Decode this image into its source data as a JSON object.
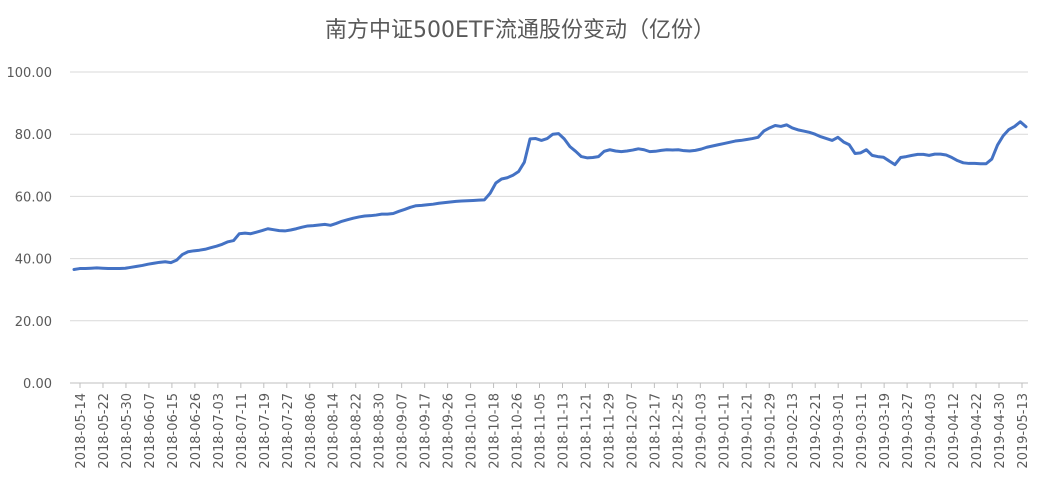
{
  "chart_data": {
    "type": "line",
    "title": "南方中证500ETF流通股份变动（亿份）",
    "ylim": [
      0,
      100
    ],
    "yticks": [
      "0.00",
      "20.00",
      "40.00",
      "60.00",
      "80.00",
      "100.00"
    ],
    "ytick_values": [
      0,
      20,
      40,
      60,
      80,
      100
    ],
    "grid": true,
    "legend": "none",
    "series_color": "#4472c4",
    "x_tick_labels": [
      "2018-05-14",
      "2018-05-22",
      "2018-05-30",
      "2018-06-07",
      "2018-06-15",
      "2018-06-26",
      "2018-07-03",
      "2018-07-11",
      "2018-07-19",
      "2018-07-27",
      "2018-08-06",
      "2018-08-14",
      "2018-08-22",
      "2018-08-30",
      "2018-09-07",
      "2018-09-17",
      "2018-09-26",
      "2018-10-10",
      "2018-10-18",
      "2018-10-26",
      "2018-11-05",
      "2018-11-13",
      "2018-11-21",
      "2018-11-29",
      "2018-12-07",
      "2018-12-17",
      "2018-12-25",
      "2019-01-03",
      "2019-01-11",
      "2019-01-21",
      "2019-01-29",
      "2019-02-13",
      "2019-02-21",
      "2019-03-01",
      "2019-03-11",
      "2019-03-19",
      "2019-03-27",
      "2019-04-03",
      "2019-04-12",
      "2019-04-22",
      "2019-04-30",
      "2019-05-13"
    ],
    "values": [
      36.5,
      36.8,
      36.8,
      36.9,
      37.0,
      36.9,
      36.8,
      36.8,
      36.8,
      36.9,
      37.2,
      37.5,
      37.8,
      38.2,
      38.5,
      38.8,
      39.0,
      38.7,
      39.5,
      41.3,
      42.2,
      42.5,
      42.7,
      43.0,
      43.5,
      44.0,
      44.6,
      45.4,
      45.8,
      48.0,
      48.2,
      48.0,
      48.5,
      49.0,
      49.6,
      49.3,
      49.0,
      48.9,
      49.2,
      49.6,
      50.1,
      50.5,
      50.6,
      50.8,
      51.0,
      50.7,
      51.3,
      52.0,
      52.5,
      53.0,
      53.4,
      53.7,
      53.8,
      54.0,
      54.3,
      54.3,
      54.5,
      55.2,
      55.8,
      56.5,
      57.0,
      57.1,
      57.3,
      57.5,
      57.8,
      58.0,
      58.2,
      58.4,
      58.5,
      58.6,
      58.7,
      58.8,
      58.9,
      61.0,
      64.3,
      65.6,
      66.0,
      66.8,
      68.0,
      71.0,
      78.5,
      78.6,
      78.0,
      78.6,
      80.0,
      80.2,
      78.5,
      76.0,
      74.5,
      72.8,
      72.4,
      72.5,
      72.8,
      74.5,
      75.0,
      74.6,
      74.4,
      74.6,
      74.9,
      75.3,
      75.0,
      74.4,
      74.5,
      74.8,
      75.0,
      74.9,
      75.0,
      74.7,
      74.6,
      74.8,
      75.2,
      75.8,
      76.2,
      76.6,
      77.0,
      77.4,
      77.8,
      78.0,
      78.3,
      78.6,
      79.0,
      81.0,
      82.0,
      82.8,
      82.5,
      83.0,
      82.0,
      81.4,
      81.0,
      80.6,
      80.0,
      79.2,
      78.6,
      78.0,
      79.0,
      77.5,
      76.6,
      73.8,
      74.0,
      75.0,
      73.2,
      72.8,
      72.6,
      71.4,
      70.2,
      72.5,
      72.8,
      73.2,
      73.5,
      73.5,
      73.2,
      73.6,
      73.6,
      73.3,
      72.5,
      71.5,
      70.8,
      70.6,
      70.6,
      70.5,
      70.5,
      72.0,
      76.5,
      79.5,
      81.5,
      82.5,
      84.0,
      82.4
    ]
  }
}
